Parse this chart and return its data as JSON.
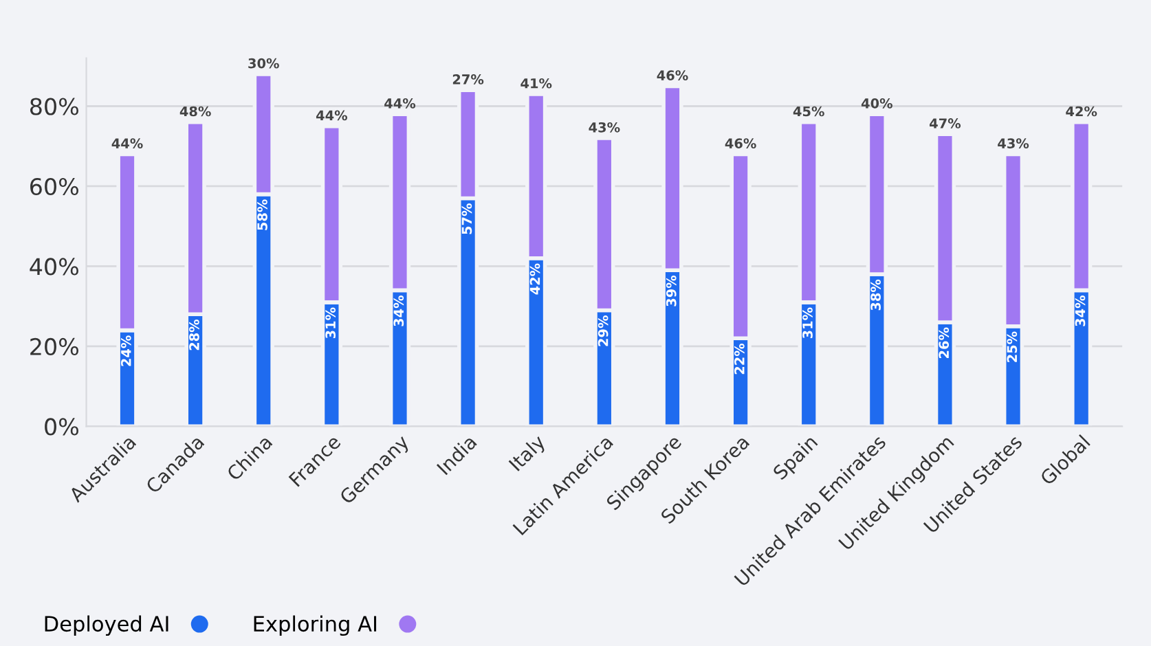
{
  "chart_data": {
    "type": "bar",
    "stacked": true,
    "categories": [
      "Australia",
      "Canada",
      "China",
      "France",
      "Germany",
      "India",
      "Italy",
      "Latin America",
      "Singapore",
      "South Korea",
      "Spain",
      "United Arab Emirates",
      "United Kingdom",
      "United States",
      "Global"
    ],
    "series": [
      {
        "name": "Deployed AI",
        "color": "#1f6bef",
        "values": [
          24,
          28,
          58,
          31,
          34,
          57,
          42,
          29,
          39,
          22,
          31,
          38,
          26,
          25,
          34
        ],
        "value_labels": [
          "24%",
          "28%",
          "58%",
          "31%",
          "34%",
          "57%",
          "42%",
          "29%",
          "39%",
          "22%",
          "31%",
          "38%",
          "26%",
          "25%",
          "34%"
        ]
      },
      {
        "name": "Exploring AI",
        "color": "#a078f2",
        "values": [
          44,
          48,
          30,
          44,
          44,
          27,
          41,
          43,
          46,
          46,
          45,
          40,
          47,
          43,
          42
        ],
        "value_labels": [
          "44%",
          "48%",
          "30%",
          "44%",
          "44%",
          "27%",
          "41%",
          "43%",
          "46%",
          "46%",
          "45%",
          "40%",
          "47%",
          "43%",
          "42%"
        ]
      }
    ],
    "ylim": [
      0,
      92
    ],
    "yticks": [
      {
        "value": 0,
        "label": "0%"
      },
      {
        "value": 20,
        "label": "20%"
      },
      {
        "value": 40,
        "label": "40%"
      },
      {
        "value": 60,
        "label": "60%"
      },
      {
        "value": 80,
        "label": "80%"
      }
    ],
    "grid": "y",
    "legend": "bottom",
    "marker": "circle"
  }
}
